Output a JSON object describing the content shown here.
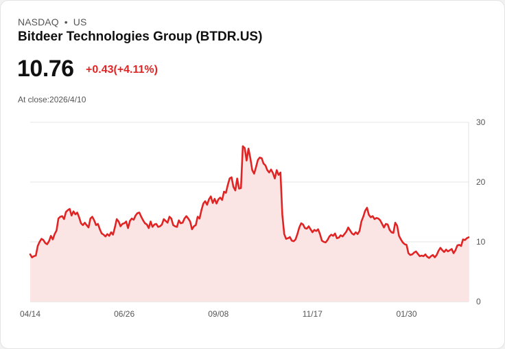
{
  "header": {
    "exchange": "NASDAQ",
    "separator": "•",
    "market": "US",
    "title": "Bitdeer Technologies Group (BTDR.US)",
    "price": "10.76",
    "change": "+0.43(+4.11%)",
    "close_info": "At close:2026/4/10"
  },
  "colors": {
    "line": "#e02424",
    "fill": "#fbe4e4",
    "grid": "#e6e6e6"
  },
  "chart_data": {
    "type": "area",
    "title": "",
    "xlabel": "",
    "ylabel": "",
    "ylim": [
      0,
      30
    ],
    "yticks": [
      0,
      10,
      20,
      30
    ],
    "y_axis_position": "right",
    "x_tick_labels": [
      {
        "label": "04/14",
        "index": 0
      },
      {
        "label": "06/26",
        "index": 50
      },
      {
        "label": "09/08",
        "index": 100
      },
      {
        "label": "11/17",
        "index": 150
      },
      {
        "label": "01/30",
        "index": 200
      }
    ],
    "series": [
      {
        "name": "BTDR.US",
        "values": [
          7.9,
          7.4,
          7.6,
          7.7,
          9.3,
          10.0,
          10.5,
          10.3,
          9.8,
          9.6,
          10.1,
          11.0,
          10.4,
          11.3,
          11.9,
          13.9,
          14.2,
          14.3,
          13.8,
          15.0,
          15.3,
          15.5,
          14.4,
          15.1,
          14.6,
          14.9,
          14.1,
          13.1,
          12.8,
          13.2,
          12.8,
          12.4,
          13.9,
          14.2,
          13.6,
          12.8,
          13.0,
          12.1,
          11.4,
          11.2,
          10.9,
          11.3,
          11.0,
          11.6,
          11.2,
          12.4,
          13.8,
          13.4,
          12.6,
          13.0,
          13.1,
          13.4,
          12.3,
          13.5,
          13.9,
          13.7,
          14.4,
          14.8,
          14.9,
          14.2,
          13.6,
          13.1,
          12.9,
          12.3,
          13.4,
          12.5,
          12.9,
          13.0,
          12.5,
          12.6,
          12.9,
          13.8,
          13.5,
          13.2,
          14.2,
          13.9,
          12.8,
          12.6,
          12.5,
          13.6,
          13.1,
          13.2,
          13.9,
          14.3,
          13.9,
          13.4,
          12.1,
          12.6,
          12.8,
          14.2,
          13.9,
          15.3,
          16.4,
          16.8,
          16.2,
          17.1,
          17.6,
          16.5,
          17.2,
          16.4,
          17.1,
          17.4,
          17.0,
          18.4,
          18.2,
          19.5,
          20.6,
          20.8,
          19.2,
          18.6,
          20.6,
          18.9,
          19.0,
          26.0,
          25.7,
          23.6,
          25.6,
          24.0,
          22.0,
          21.4,
          22.5,
          23.7,
          24.1,
          24.0,
          23.1,
          22.8,
          22.0,
          21.6,
          22.1,
          21.5,
          20.6,
          22.0,
          21.2,
          21.6,
          14.5,
          11.3,
          10.5,
          10.6,
          10.8,
          10.2,
          10.1,
          10.4,
          11.3,
          12.4,
          13.1,
          12.9,
          12.3,
          12.2,
          12.6,
          12.1,
          11.6,
          12.0,
          11.8,
          12.1,
          11.3,
          10.2,
          10.0,
          9.9,
          10.3,
          10.9,
          11.2,
          11.0,
          11.4,
          10.6,
          10.7,
          11.1,
          10.9,
          11.3,
          11.7,
          12.4,
          11.9,
          11.4,
          11.2,
          11.6,
          11.3,
          11.8,
          13.4,
          14.2,
          15.2,
          15.7,
          14.5,
          14.1,
          14.3,
          13.8,
          14.0,
          13.9,
          13.6,
          13.0,
          12.4,
          13.0,
          12.9,
          12.0,
          11.6,
          11.5,
          13.2,
          12.7,
          11.0,
          10.4,
          9.9,
          9.6,
          9.5,
          8.1,
          7.8,
          7.9,
          8.2,
          8.4,
          8.0,
          7.6,
          7.7,
          7.6,
          7.9,
          7.5,
          7.3,
          7.6,
          7.8,
          7.4,
          7.8,
          8.5,
          9.0,
          8.6,
          8.3,
          8.7,
          8.4,
          8.6,
          8.8,
          8.1,
          8.6,
          9.4,
          9.5,
          9.3,
          10.4,
          10.3,
          10.6,
          10.76
        ]
      }
    ]
  }
}
